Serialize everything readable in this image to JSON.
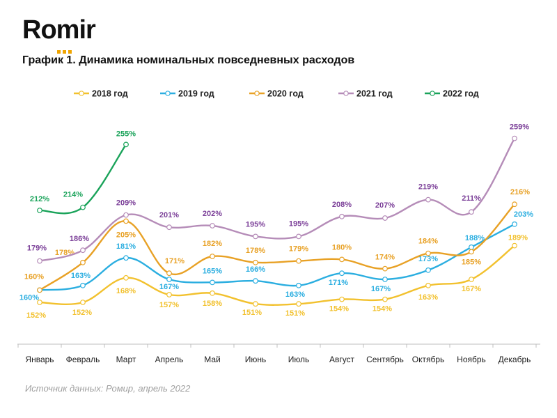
{
  "brand": {
    "name": "Romir",
    "accent_color": "#f0a500"
  },
  "header": {
    "title": "График 1. Динамика номинальных повседневных расходов"
  },
  "footer": {
    "source": "Источник данных: Ромир, апрель 2022"
  },
  "chart_data": {
    "type": "line",
    "title": "График 1. Динамика номинальных повседневных расходов",
    "xlabel": "",
    "ylabel": "",
    "grid": false,
    "legend_position": "top",
    "categories": [
      "Январь",
      "Февраль",
      "Март",
      "Апрель",
      "Май",
      "Июнь",
      "Июль",
      "Август",
      "Сентябрь",
      "Октябрь",
      "Ноябрь",
      "Декабрь"
    ],
    "series": [
      {
        "name": "2018 год",
        "color": "#f2c12e",
        "values": [
          152,
          152,
          168,
          157,
          158,
          151,
          151,
          154,
          154,
          163,
          167,
          189
        ],
        "labels": [
          "152%",
          "152%",
          "168%",
          "157%",
          "158%",
          "151%",
          "151%",
          "154%",
          "154%",
          "163%",
          "167%",
          "189%"
        ]
      },
      {
        "name": "2019 год",
        "color": "#2baee0",
        "values": [
          160,
          163,
          181,
          167,
          165,
          166,
          163,
          171,
          167,
          173,
          188,
          203
        ],
        "labels": [
          "160%",
          "163%",
          "181%",
          "167%",
          "165%",
          "166%",
          "163%",
          "171%",
          "167%",
          "173%",
          "188%",
          "203%"
        ]
      },
      {
        "name": "2020 год",
        "color": "#e8a125",
        "values": [
          160,
          178,
          205,
          171,
          182,
          178,
          179,
          180,
          174,
          184,
          185,
          216
        ],
        "labels": [
          "160%",
          "178%",
          "205%",
          "171%",
          "182%",
          "178%",
          "179%",
          "180%",
          "174%",
          "184%",
          "185%",
          "216%"
        ]
      },
      {
        "name": "2021 год",
        "color": "#b58cb8",
        "label_color": "#7b3f98",
        "values": [
          179,
          186,
          209,
          201,
          202,
          195,
          195,
          208,
          207,
          219,
          211,
          259
        ],
        "labels": [
          "179%",
          "186%",
          "209%",
          "201%",
          "202%",
          "195%",
          "195%",
          "208%",
          "207%",
          "219%",
          "211%",
          "259%"
        ]
      },
      {
        "name": "2022 год",
        "color": "#1aa35a",
        "values": [
          212,
          214,
          255,
          null,
          null,
          null,
          null,
          null,
          null,
          null,
          null,
          null
        ],
        "labels": [
          "212%",
          "214%",
          "255%",
          null,
          null,
          null,
          null,
          null,
          null,
          null,
          null,
          null
        ]
      }
    ]
  }
}
